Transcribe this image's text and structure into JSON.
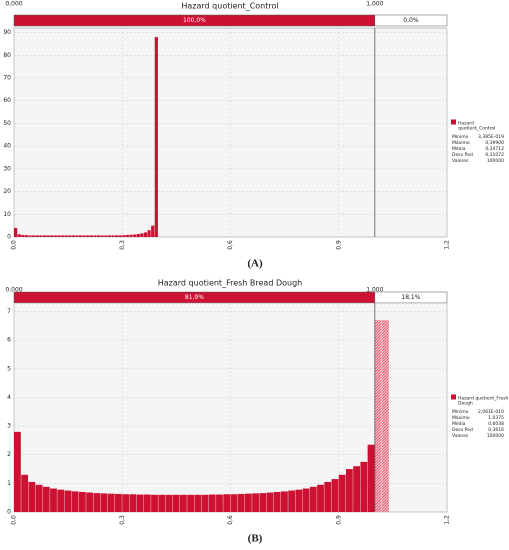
{
  "chart_data": [
    {
      "type": "histogram",
      "title": "Hazard quotient_Control",
      "caption": "(A)",
      "color": "#cc1133",
      "bins": [
        0,
        0.01,
        0.02,
        0.03,
        0.04,
        0.05,
        0.06,
        0.07,
        0.08,
        0.09,
        0.1,
        0.11,
        0.12,
        0.13,
        0.14,
        0.15,
        0.16,
        0.17,
        0.18,
        0.19,
        0.2,
        0.21,
        0.22,
        0.23,
        0.24,
        0.25,
        0.26,
        0.27,
        0.28,
        0.29,
        0.3,
        0.31,
        0.32,
        0.33,
        0.34,
        0.35,
        0.36,
        0.37,
        0.38,
        0.39,
        0.4
      ],
      "values": [
        4,
        1.2,
        0.9,
        0.8,
        0.7,
        0.7,
        0.7,
        0.7,
        0.7,
        0.7,
        0.7,
        0.7,
        0.7,
        0.7,
        0.7,
        0.7,
        0.7,
        0.7,
        0.7,
        0.7,
        0.7,
        0.7,
        0.7,
        0.7,
        0.7,
        0.7,
        0.7,
        0.7,
        0.75,
        0.75,
        0.8,
        0.9,
        1,
        1.1,
        1.3,
        1.6,
        2,
        3,
        5,
        88
      ],
      "xlim": [
        0,
        1.2
      ],
      "ylim": [
        0,
        92
      ],
      "xticks": [
        {
          "value": 0,
          "label": "0,0"
        },
        {
          "value": 0.3,
          "label": "0,3"
        },
        {
          "value": 0.6,
          "label": "0,6"
        },
        {
          "value": 0.9,
          "label": "0,9"
        },
        {
          "value": 1.2,
          "label": "1,2"
        }
      ],
      "yticks": [
        0,
        10,
        20,
        30,
        40,
        50,
        60,
        70,
        80,
        90
      ],
      "grid": true,
      "left_limit": {
        "value": 0,
        "label": "0,000"
      },
      "right_limit": {
        "value": 1,
        "label": "1,000"
      },
      "segments": [
        {
          "value": 100,
          "label": "100,0%"
        },
        {
          "value": 0,
          "label": "0,0%"
        }
      ],
      "legend": "Hazard quotient_Control",
      "stats": [
        {
          "label": "Mínimo",
          "value": "3,385E-019"
        },
        {
          "label": "Máximo",
          "value": "0,39900"
        },
        {
          "label": "Média",
          "value": "0,34712"
        },
        {
          "label": "Desv Pad",
          "value": "0,11072"
        },
        {
          "label": "Valores",
          "value": 100000
        }
      ]
    },
    {
      "type": "histogram",
      "title": "Hazard quotient_Fresh Bread Dough",
      "caption": "(B)",
      "color": "#cc1133",
      "bins": [
        0,
        0.02,
        0.04,
        0.06,
        0.08,
        0.1,
        0.12,
        0.14,
        0.16,
        0.18,
        0.2,
        0.22,
        0.24,
        0.26,
        0.28,
        0.3,
        0.32,
        0.34,
        0.36,
        0.38,
        0.4,
        0.42,
        0.44,
        0.46,
        0.48,
        0.5,
        0.52,
        0.54,
        0.56,
        0.58,
        0.6,
        0.62,
        0.64,
        0.66,
        0.68,
        0.7,
        0.72,
        0.74,
        0.76,
        0.78,
        0.8,
        0.82,
        0.84,
        0.86,
        0.88,
        0.9,
        0.92,
        0.94,
        0.96,
        0.98,
        1,
        1.02,
        1.04
      ],
      "values": [
        2.8,
        1.3,
        1.05,
        0.95,
        0.88,
        0.82,
        0.78,
        0.75,
        0.72,
        0.7,
        0.68,
        0.66,
        0.65,
        0.64,
        0.63,
        0.62,
        0.62,
        0.61,
        0.61,
        0.6,
        0.6,
        0.6,
        0.6,
        0.6,
        0.6,
        0.6,
        0.6,
        0.61,
        0.61,
        0.62,
        0.62,
        0.63,
        0.64,
        0.65,
        0.66,
        0.68,
        0.7,
        0.72,
        0.75,
        0.78,
        0.82,
        0.88,
        0.95,
        1.05,
        1.15,
        1.3,
        1.5,
        1.6,
        1.75,
        2.35,
        6.7,
        6.7
      ],
      "xlim": [
        0,
        1.2
      ],
      "ylim": [
        0,
        7.3
      ],
      "xticks": [
        {
          "value": 0,
          "label": "0,0"
        },
        {
          "value": 0.3,
          "label": "0,3"
        },
        {
          "value": 0.6,
          "label": "0,6"
        },
        {
          "value": 0.9,
          "label": "0,9"
        },
        {
          "value": 1.2,
          "label": "1,2"
        }
      ],
      "yticks": [
        0,
        1,
        2,
        3,
        4,
        5,
        6,
        7
      ],
      "grid": true,
      "left_limit": {
        "value": 0,
        "label": "0,000"
      },
      "right_limit": {
        "value": 1,
        "label": "1,000"
      },
      "segments": [
        {
          "value": 81.9,
          "label": "81,9%"
        },
        {
          "value": 18.1,
          "label": "18,1%"
        }
      ],
      "legend": "Hazard quotient_Fresh Bread Dough",
      "stats": [
        {
          "label": "Mínimo",
          "value": "2,061E-010"
        },
        {
          "label": "Máximo",
          "value": "1,0375"
        },
        {
          "label": "Média",
          "value": "0,6038"
        },
        {
          "label": "Desv Pad",
          "value": "0,3616"
        },
        {
          "label": "Valores",
          "value": 100000
        }
      ]
    }
  ]
}
